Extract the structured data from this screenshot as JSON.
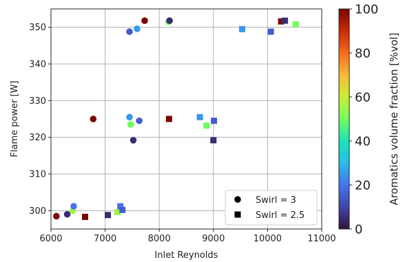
{
  "chart_data": {
    "type": "scatter",
    "xlabel": "Inlet Reynolds",
    "ylabel": "Flame power [W]",
    "xlim": [
      6000,
      11000
    ],
    "ylim": [
      295,
      355
    ],
    "xticks": [
      6000,
      7000,
      8000,
      9000,
      10000,
      11000
    ],
    "yticks": [
      300,
      310,
      320,
      330,
      340,
      350
    ],
    "grid": true,
    "legend_position": "bottom-right",
    "colorbar": {
      "label": "Aromatics volume fraction [%vol]",
      "range": [
        0,
        100
      ],
      "ticks": [
        0,
        20,
        40,
        60,
        80,
        100
      ],
      "colormap": "turbo"
    },
    "series": [
      {
        "name": "Swirl = 3",
        "marker": "circle",
        "points": [
          {
            "x": 6100,
            "y": 298.5,
            "c": 100
          },
          {
            "x": 6300,
            "y": 299.0,
            "c": 5
          },
          {
            "x": 6400,
            "y": 300.0,
            "c": 55
          },
          {
            "x": 6420,
            "y": 301.2,
            "c": 20
          },
          {
            "x": 6780,
            "y": 325.0,
            "c": 100
          },
          {
            "x": 7450,
            "y": 325.5,
            "c": 25
          },
          {
            "x": 7470,
            "y": 323.5,
            "c": 50
          },
          {
            "x": 7520,
            "y": 319.2,
            "c": 5
          },
          {
            "x": 7630,
            "y": 324.5,
            "c": 15
          },
          {
            "x": 7450,
            "y": 348.8,
            "c": 15
          },
          {
            "x": 7590,
            "y": 349.6,
            "c": 25
          },
          {
            "x": 7730,
            "y": 351.8,
            "c": 100
          },
          {
            "x": 8170,
            "y": 351.5,
            "c": 50
          },
          {
            "x": 8190,
            "y": 351.8,
            "c": 5
          }
        ]
      },
      {
        "name": "Swirl = 2.5",
        "marker": "square",
        "points": [
          {
            "x": 6630,
            "y": 298.3,
            "c": 100
          },
          {
            "x": 7050,
            "y": 298.8,
            "c": 5
          },
          {
            "x": 7230,
            "y": 299.6,
            "c": 55
          },
          {
            "x": 7280,
            "y": 301.2,
            "c": 20
          },
          {
            "x": 7320,
            "y": 300.2,
            "c": 15
          },
          {
            "x": 8180,
            "y": 325.0,
            "c": 100
          },
          {
            "x": 8750,
            "y": 325.5,
            "c": 25
          },
          {
            "x": 8870,
            "y": 323.2,
            "c": 50
          },
          {
            "x": 9000,
            "y": 319.2,
            "c": 5
          },
          {
            "x": 9010,
            "y": 324.5,
            "c": 15
          },
          {
            "x": 9530,
            "y": 349.5,
            "c": 25
          },
          {
            "x": 10060,
            "y": 348.8,
            "c": 15
          },
          {
            "x": 10250,
            "y": 351.6,
            "c": 100
          },
          {
            "x": 10320,
            "y": 351.8,
            "c": 5
          },
          {
            "x": 10520,
            "y": 350.8,
            "c": 50
          }
        ]
      }
    ]
  }
}
